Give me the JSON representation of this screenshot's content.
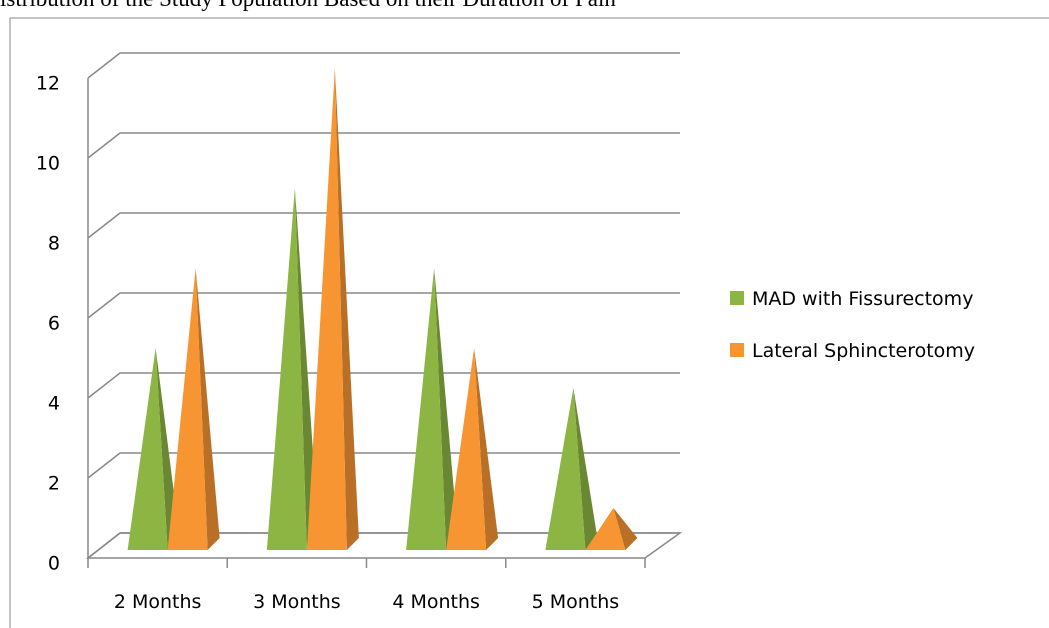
{
  "chart_data": {
    "type": "bar",
    "title": "istribution of the Study Population Based on their Duration of Pain",
    "categories": [
      "2 Months",
      "3 Months",
      "4 Months",
      "5 Months"
    ],
    "series": [
      {
        "name": "MAD with Fissurectomy",
        "color": "#8db543",
        "values": [
          5,
          9,
          7,
          4
        ]
      },
      {
        "name": "Lateral Sphincterotomy",
        "color": "#f79533",
        "values": [
          7,
          12,
          5,
          1
        ]
      }
    ],
    "ylim": [
      0,
      12
    ],
    "yticks": [
      0,
      2,
      4,
      6,
      8,
      10,
      12
    ],
    "grid": true,
    "legend": "right"
  }
}
